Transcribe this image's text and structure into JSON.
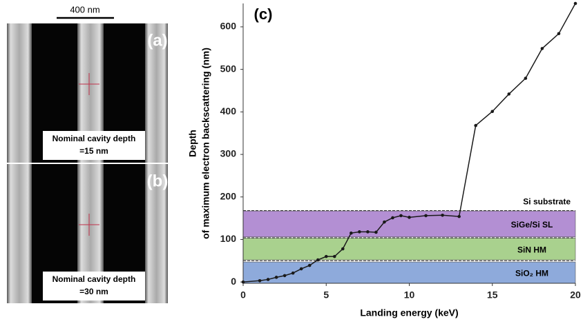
{
  "scale_bar": "400 nm",
  "sem_panels": [
    {
      "label": "(a)",
      "caption": [
        "Nominal cavity depth",
        "=15 nm"
      ]
    },
    {
      "label": "(b)",
      "caption": [
        "Nominal cavity depth",
        "=30 nm"
      ]
    }
  ],
  "chart_data": {
    "type": "line",
    "panel_label": "(c)",
    "x_label": "Landing energy (keV)",
    "y_label": [
      "Depth",
      "of maximum electron backscattering (nm)"
    ],
    "x": [
      0,
      1,
      1.5,
      2,
      2.5,
      3,
      3.5,
      4,
      4.5,
      5,
      5.5,
      6,
      6.5,
      7,
      7.5,
      8,
      8.5,
      9,
      9.5,
      10,
      11,
      12,
      13,
      14,
      15,
      16,
      17,
      18,
      19,
      20
    ],
    "values": [
      0,
      3,
      6,
      11,
      15,
      21,
      31,
      39,
      52,
      60,
      60,
      78,
      115,
      118,
      118,
      117,
      141,
      151,
      156,
      152,
      156,
      157,
      154,
      368,
      401,
      442,
      479,
      549,
      584,
      655
    ],
    "color": "#1a1a1a",
    "xlim": [
      0,
      20
    ],
    "ylim": [
      -3,
      655
    ],
    "xticks": [
      0,
      5,
      10,
      15,
      20
    ],
    "yticks": [
      0,
      100,
      200,
      300,
      400,
      500,
      600
    ],
    "layers": [
      {
        "label": "SiO₂ HM",
        "from": -3,
        "to": 47,
        "color": "#8eaadb"
      },
      {
        "label": "SiN HM",
        "from": 52,
        "to": 103,
        "color": "#a9d18e"
      },
      {
        "label": "SiGe/Si SL",
        "from": 106,
        "to": 167,
        "color": "#b38fd3"
      },
      {
        "label": "Si substrate"
      }
    ],
    "boundaries": [
      50,
      104,
      168
    ]
  }
}
